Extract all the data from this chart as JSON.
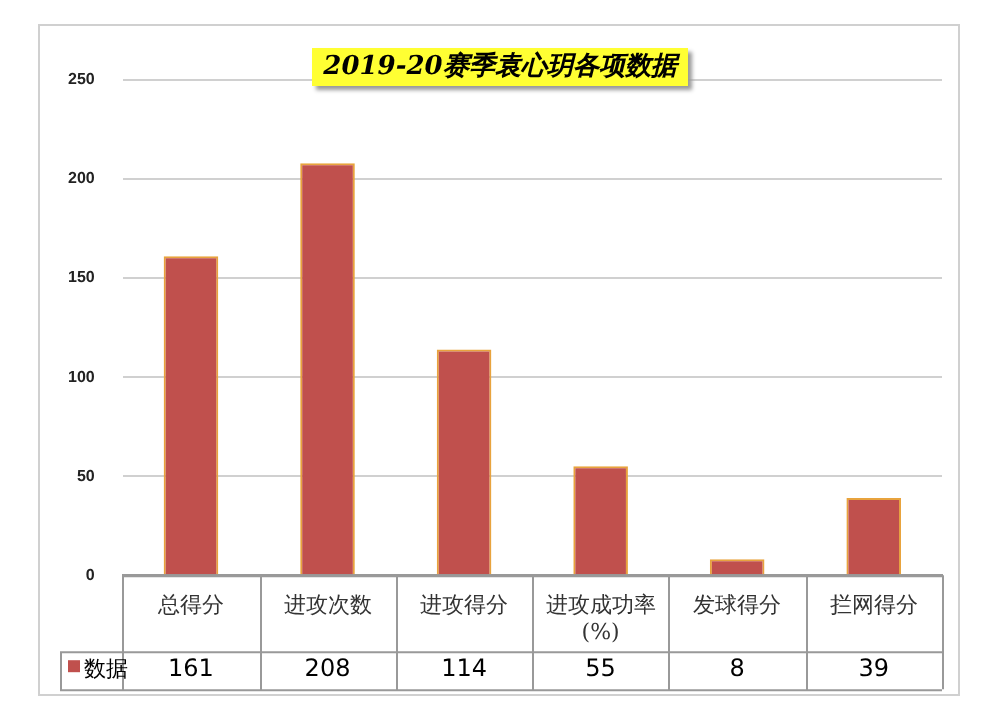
{
  "chart_data": {
    "type": "bar",
    "title": "2019-20赛季袁心玥各项数据",
    "categories": [
      "总得分",
      "进攻次数",
      "进攻得分",
      "进攻成功率(%)",
      "发球得分",
      "拦网得分"
    ],
    "series": [
      {
        "name": "数据",
        "color": "#c0504d",
        "values": [
          161,
          208,
          114,
          55,
          8,
          39
        ]
      }
    ],
    "ylim": [
      0,
      250
    ],
    "yticks": [
      0,
      50,
      100,
      150,
      200,
      250
    ],
    "grid": "y",
    "legend": "bottom",
    "data_labels": true
  }
}
